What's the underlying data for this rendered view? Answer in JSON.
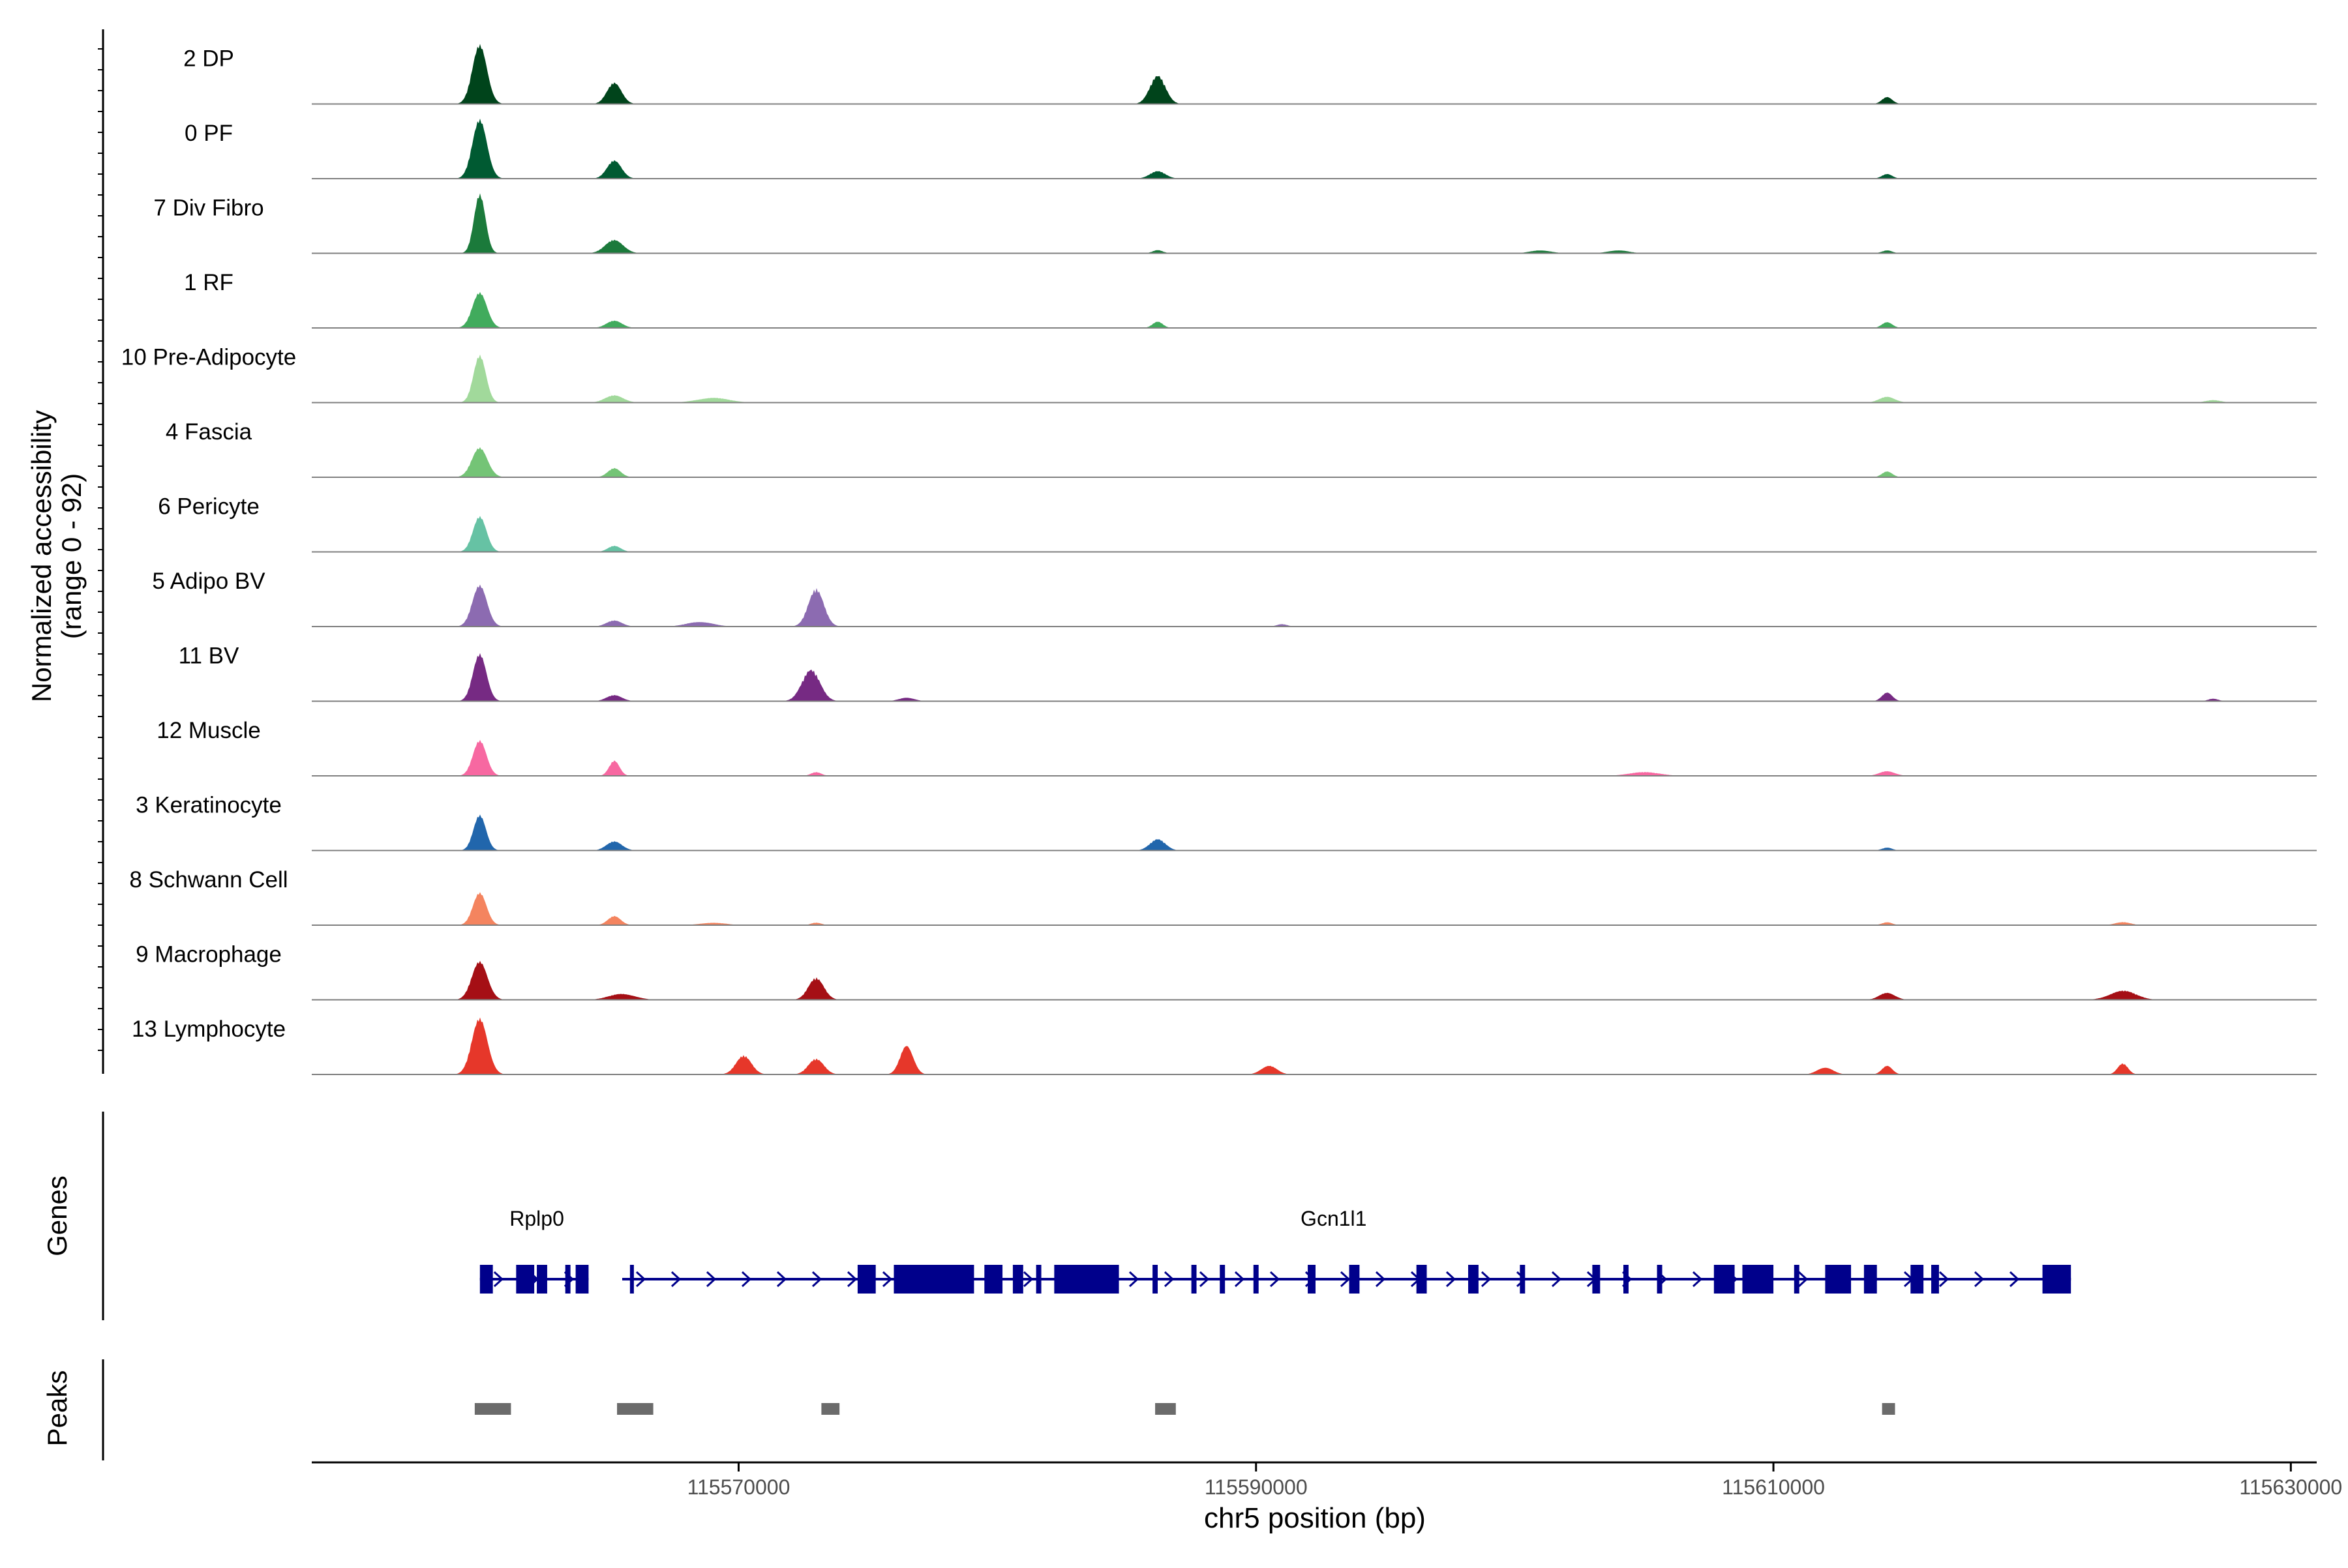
{
  "chart_data": {
    "type": "area",
    "title": "",
    "ylabel_line1": "Normalized accessibility",
    "ylabel_line2": "(range 0 - 92)",
    "xlabel": "chr5 position (bp)",
    "xlim": [
      115553500,
      115631000
    ],
    "x_ticks": [
      115570000,
      115590000,
      115610000,
      115630000
    ],
    "x_tick_labels": [
      "115570000",
      "115590000",
      "115610000",
      "115630000"
    ],
    "genes_label": "Genes",
    "peaks_label": "Peaks",
    "tracks": [
      {
        "name": "2 DP",
        "color": "#00441b",
        "bumps": [
          [
            115560000,
            1.0,
            280
          ],
          [
            115565200,
            0.35,
            280
          ],
          [
            115586200,
            0.45,
            300
          ],
          [
            115614400,
            0.12,
            200
          ]
        ]
      },
      {
        "name": "0 PF",
        "color": "#005a32",
        "bumps": [
          [
            115560000,
            1.0,
            280
          ],
          [
            115565200,
            0.3,
            280
          ],
          [
            115586200,
            0.12,
            300
          ],
          [
            115614400,
            0.08,
            200
          ]
        ]
      },
      {
        "name": "7 Div Fibro",
        "color": "#1b7a3b",
        "bumps": [
          [
            115560000,
            1.0,
            220
          ],
          [
            115565200,
            0.22,
            350
          ],
          [
            115586200,
            0.05,
            200
          ],
          [
            115601000,
            0.05,
            400
          ],
          [
            115604000,
            0.05,
            400
          ],
          [
            115614400,
            0.05,
            200
          ]
        ]
      },
      {
        "name": "1 RF",
        "color": "#41ab5d",
        "bumps": [
          [
            115560000,
            0.6,
            280
          ],
          [
            115565200,
            0.12,
            300
          ],
          [
            115586200,
            0.1,
            200
          ],
          [
            115614400,
            0.1,
            200
          ]
        ]
      },
      {
        "name": "10 Pre-Adipocyte",
        "color": "#a1d99b",
        "bumps": [
          [
            115560000,
            0.8,
            240
          ],
          [
            115565200,
            0.12,
            350
          ],
          [
            115569000,
            0.08,
            600
          ],
          [
            115614400,
            0.1,
            300
          ],
          [
            115627000,
            0.04,
            300
          ]
        ]
      },
      {
        "name": "4 Fascia",
        "color": "#74c476",
        "bumps": [
          [
            115560000,
            0.5,
            300
          ],
          [
            115565200,
            0.15,
            250
          ],
          [
            115614400,
            0.1,
            200
          ]
        ]
      },
      {
        "name": "6 Pericyte",
        "color": "#66c2a4",
        "bumps": [
          [
            115560000,
            0.6,
            260
          ],
          [
            115565200,
            0.1,
            250
          ]
        ]
      },
      {
        "name": "5 Adipo BV",
        "color": "#8c6bb1",
        "bumps": [
          [
            115560000,
            0.7,
            280
          ],
          [
            115565200,
            0.1,
            300
          ],
          [
            115568500,
            0.08,
            500
          ],
          [
            115573000,
            0.6,
            300
          ],
          [
            115591000,
            0.04,
            200
          ]
        ]
      },
      {
        "name": "11 BV",
        "color": "#762a83",
        "bumps": [
          [
            115560000,
            0.8,
            260
          ],
          [
            115565200,
            0.1,
            300
          ],
          [
            115572800,
            0.5,
            350
          ],
          [
            115576500,
            0.06,
            300
          ],
          [
            115614400,
            0.15,
            200
          ],
          [
            115627000,
            0.04,
            200
          ]
        ]
      },
      {
        "name": "12 Muscle",
        "color": "#f768a1",
        "bumps": [
          [
            115560000,
            0.6,
            260
          ],
          [
            115565200,
            0.25,
            200
          ],
          [
            115573000,
            0.06,
            200
          ],
          [
            115605000,
            0.06,
            600
          ],
          [
            115614400,
            0.08,
            300
          ]
        ]
      },
      {
        "name": "3 Keratinocyte",
        "color": "#2166ac",
        "bumps": [
          [
            115560000,
            0.6,
            240
          ],
          [
            115565200,
            0.15,
            300
          ],
          [
            115586200,
            0.18,
            300
          ],
          [
            115614400,
            0.05,
            200
          ]
        ]
      },
      {
        "name": "8 Schwann Cell",
        "color": "#f4845f",
        "bumps": [
          [
            115560000,
            0.55,
            260
          ],
          [
            115565200,
            0.15,
            250
          ],
          [
            115569000,
            0.04,
            500
          ],
          [
            115573000,
            0.04,
            200
          ],
          [
            115614400,
            0.05,
            200
          ],
          [
            115623500,
            0.05,
            300
          ]
        ]
      },
      {
        "name": "9 Macrophage",
        "color": "#a50f15",
        "bumps": [
          [
            115560000,
            0.65,
            300
          ],
          [
            115565500,
            0.1,
            500
          ],
          [
            115573000,
            0.35,
            300
          ],
          [
            115614400,
            0.12,
            300
          ],
          [
            115623500,
            0.15,
            500
          ]
        ]
      },
      {
        "name": "13 Lymphocyte",
        "color": "#e6372a",
        "bumps": [
          [
            115560000,
            0.95,
            300
          ],
          [
            115570200,
            0.3,
            300
          ],
          [
            115573000,
            0.25,
            300
          ],
          [
            115576500,
            0.5,
            250
          ],
          [
            115590500,
            0.15,
            300
          ],
          [
            115612000,
            0.12,
            300
          ],
          [
            115614400,
            0.15,
            200
          ],
          [
            115623500,
            0.18,
            200
          ]
        ]
      }
    ],
    "genes": [
      {
        "name": "Rplp0",
        "strand": "+",
        "start": 115560000,
        "end": 115564200,
        "label_pos": 115562200,
        "exons": [
          [
            115560000,
            115560500
          ],
          [
            115561400,
            115562100
          ],
          [
            115562200,
            115562600
          ],
          [
            115563300,
            115563500
          ],
          [
            115563700,
            115564200
          ]
        ]
      },
      {
        "name": "Gcn1l1",
        "strand": "+",
        "start": 115565500,
        "end": 115621500,
        "label_pos": 115593000,
        "exons": [
          [
            115565800,
            115565950
          ],
          [
            115574600,
            115575300
          ],
          [
            115576000,
            115579100
          ],
          [
            115579500,
            115580200
          ],
          [
            115580600,
            115581000
          ],
          [
            115581500,
            115581700
          ],
          [
            115582200,
            115584700
          ],
          [
            115586000,
            115586200
          ],
          [
            115587500,
            115587700
          ],
          [
            115588600,
            115588800
          ],
          [
            115589900,
            115590100
          ],
          [
            115592000,
            115592300
          ],
          [
            115593600,
            115594000
          ],
          [
            115596200,
            115596600
          ],
          [
            115598200,
            115598600
          ],
          [
            115600200,
            115600400
          ],
          [
            115603000,
            115603300
          ],
          [
            115604200,
            115604400
          ],
          [
            115605500,
            115605700
          ],
          [
            115607700,
            115608500
          ],
          [
            115608800,
            115610000
          ],
          [
            115610800,
            115611000
          ],
          [
            115612000,
            115613000
          ],
          [
            115613500,
            115614000
          ],
          [
            115615300,
            115615800
          ],
          [
            115616100,
            115616400
          ],
          [
            115620400,
            115621500
          ]
        ]
      }
    ],
    "peaks": [
      [
        115559800,
        115561200
      ],
      [
        115565300,
        115566700
      ],
      [
        115573200,
        115573900
      ],
      [
        115586100,
        115586900
      ],
      [
        115614200,
        115614700
      ]
    ]
  }
}
